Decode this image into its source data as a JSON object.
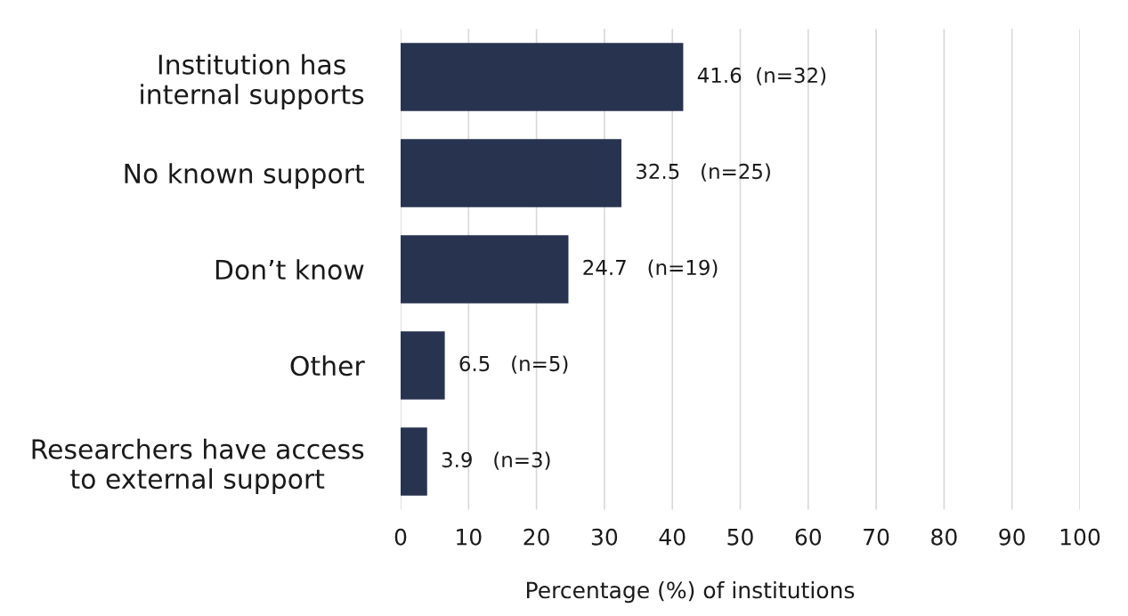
{
  "chart_data": {
    "type": "bar",
    "orientation": "horizontal",
    "xlabel": "Percentage (%) of institutions",
    "categories": [
      "Institution has\ninternal supports",
      "No known support",
      "Don’t know",
      "Other",
      "Researchers have access\nto external support"
    ],
    "values": [
      41.6,
      32.5,
      24.7,
      6.5,
      3.9
    ],
    "color": "#283350",
    "value_labels": [
      "41.6  (n=32)",
      "32.5   (n=25)",
      "24.7   (n=19)",
      "6.5   (n=5)",
      "3.9   (n=3)"
    ],
    "xlim": [
      0,
      100
    ],
    "xticks": [
      0,
      10,
      20,
      30,
      40,
      50,
      60,
      70,
      80,
      90,
      100
    ],
    "grid": "x"
  }
}
